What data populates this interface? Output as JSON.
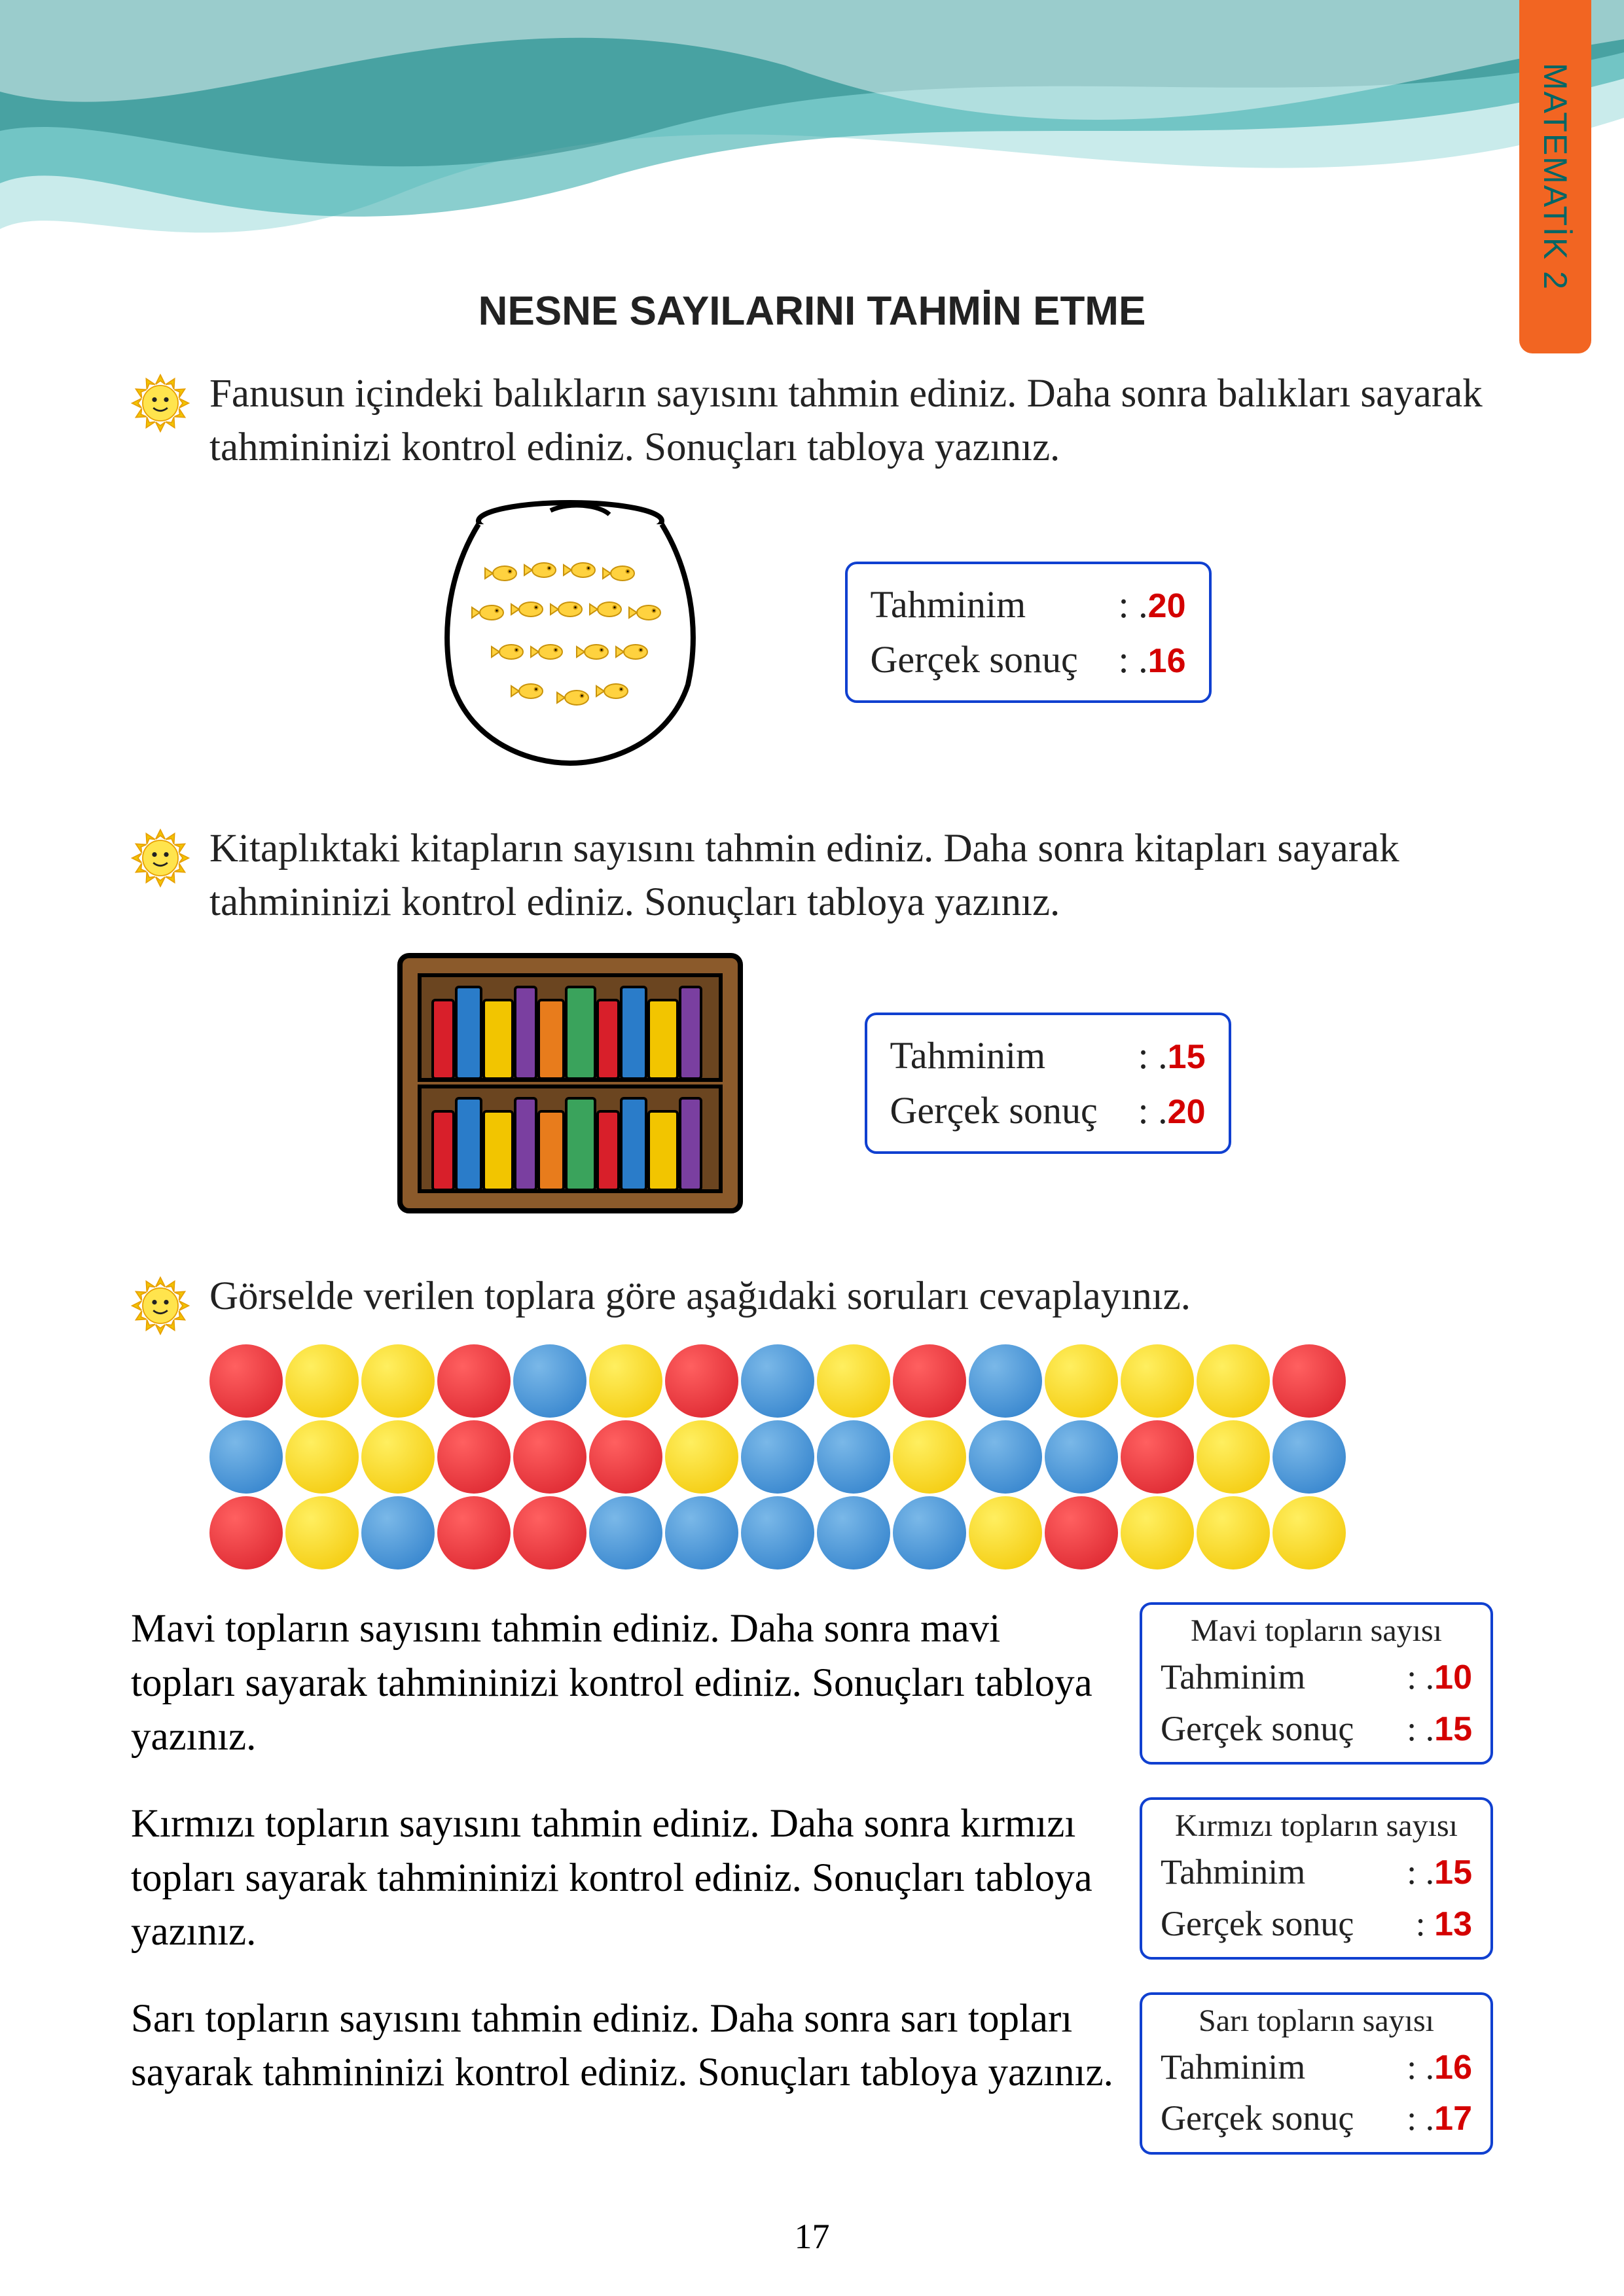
{
  "side_tab": "MATEMATİK 2",
  "page_title": "NESNE SAYILARINI TAHMİN ETME",
  "page_number": "17",
  "labels": {
    "guess": "Tahminim",
    "actual": "Gerçek sonuç",
    "colon_dot": ": .",
    "colon": ": "
  },
  "ex1": {
    "text": "Fanusun içindeki balıkların sayısını tahmin ediniz. Daha sonra balıkları sayarak tahmininizi kontrol ediniz. Sonuçları tabloya yazınız.",
    "guess": "20",
    "actual": "16"
  },
  "ex2": {
    "text": "Kitaplıktaki kitapların sayısını tahmin ediniz. Daha sonra kitapları sayarak tahmininizi kontrol ediniz. Sonuçları tabloya yazınız.",
    "guess": "15",
    "actual": "20"
  },
  "ex3": {
    "text": "Görselde verilen toplara göre aşağıdaki soruları cevaplayınız."
  },
  "balls": {
    "rows": [
      [
        "r",
        "y",
        "y",
        "r",
        "b",
        "y",
        "r",
        "b",
        "y",
        "r",
        "b",
        "y",
        "y",
        "y",
        "r"
      ],
      [
        "b",
        "y",
        "y",
        "r",
        "r",
        "r",
        "y",
        "b",
        "b",
        "y",
        "b",
        "b",
        "r",
        "y",
        "b"
      ],
      [
        "r",
        "y",
        "b",
        "r",
        "r",
        "b",
        "b",
        "b",
        "b",
        "b",
        "y",
        "r",
        "y",
        "y",
        "y"
      ]
    ],
    "colors": {
      "r": "#d81f2a",
      "y": "#f2c500",
      "b": "#2a7cc9"
    }
  },
  "q_blue": {
    "text": "Mavi topların sayısını tahmin ediniz. Daha sonra mavi topları sayarak tahmininizi kontrol ediniz. Sonuçları tabloya yazınız.",
    "title": "Mavi topların sayısı",
    "guess": "10",
    "actual": "15"
  },
  "q_red": {
    "text": "Kırmızı topların sayısını tahmin ediniz. Daha sonra kırmızı topları sayarak tahmininizi kontrol ediniz. Sonuçları tabloya yazınız.",
    "title": "Kırmızı topların sayısı",
    "guess": "15",
    "actual": "13"
  },
  "q_yellow": {
    "text": "Sarı topların sayısını tahmin ediniz. Daha sonra sarı topları sayarak tahmininizi kontrol ediniz. Sonuçları tabloya yazınız.",
    "title": "Sarı topların sayısı",
    "guess": "16",
    "actual": "17"
  },
  "bookshelf": {
    "book_colors": [
      "#d81f2a",
      "#2a7cc9",
      "#f2c500",
      "#7a3fa0",
      "#e87c1c",
      "#3aa35c",
      "#d81f2a",
      "#2a7cc9",
      "#f2c500",
      "#7a3fa0"
    ]
  }
}
